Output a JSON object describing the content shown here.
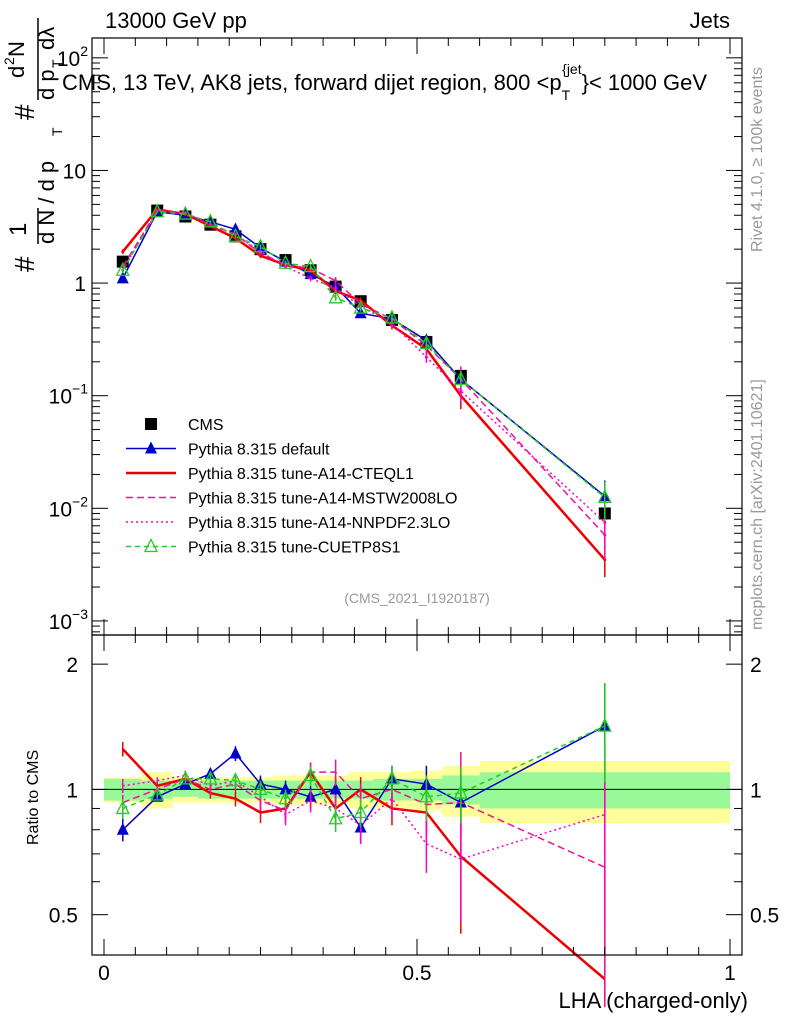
{
  "header": {
    "left": "13000 GeV pp",
    "right": "Jets"
  },
  "side": {
    "rivet": "Rivet 4.1.0, ≥ 100k events",
    "mcplots": "mcplots.cern.ch [arXiv:2401.10621]"
  },
  "ids": "(CMS_2021_I1920187)",
  "colors": {
    "cms": "#000000",
    "default": "#0000cc",
    "ctq": "#ee0000",
    "mstw": "#ee1199",
    "nnpdf": "#ff00cc",
    "cuetp": "#22cc22",
    "band_green": "#99f999",
    "band_yellow": "#ffff99"
  },
  "chart_data": {
    "type": "line",
    "title": "CMS, 13 TeV, AK8 jets, forward dijet region, 800 <p_T^{jet}< 1000 GeV",
    "title_parts": {
      "main": "CMS, 13 TeV, AK8 jets, forward dijet region, 800 <p",
      "sub": "T",
      "sup": "{jet",
      "end": "}< 1000 GeV"
    },
    "xlabel": "LHA (charged-only)",
    "ylabel": "1/dN/dpT · dN/dpT dλ",
    "ylabel_parts": {
      "one": "1",
      "dn": "d N / d p",
      "t": "T",
      "hash": "#",
      "d2n": "d",
      "two": "2",
      "n": "N",
      "dp": "d p",
      "dlam": "dλ"
    },
    "ratio_ylabel": "Ratio to CMS",
    "xlim": [
      0,
      1
    ],
    "ylim": [
      0.00075,
      150
    ],
    "ratio_ylim": [
      0.4,
      2.35
    ],
    "x_ticks": [
      "0",
      "0.5",
      "1"
    ],
    "y_ticks": [
      {
        "v": 100,
        "base": "10",
        "exp": "2"
      },
      {
        "v": 10,
        "base": "10",
        "exp": ""
      },
      {
        "v": 1,
        "base": "1",
        "exp": ""
      },
      {
        "v": 0.1,
        "base": "10",
        "exp": "−1"
      },
      {
        "v": 0.01,
        "base": "10",
        "exp": "−2"
      },
      {
        "v": 0.001,
        "base": "10",
        "exp": "−3"
      }
    ],
    "ratio_ticks": [
      "0.5",
      "1",
      "2"
    ],
    "bin_edges": [
      0.0,
      0.06,
      0.11,
      0.15,
      0.19,
      0.23,
      0.27,
      0.31,
      0.35,
      0.39,
      0.43,
      0.49,
      0.54,
      0.6,
      1.0
    ],
    "x": [
      0.03,
      0.085,
      0.13,
      0.17,
      0.21,
      0.25,
      0.29,
      0.33,
      0.37,
      0.41,
      0.46,
      0.515,
      0.57,
      0.8
    ],
    "band_green": [
      0.06,
      0.05,
      0.04,
      0.05,
      0.05,
      0.05,
      0.05,
      0.05,
      0.05,
      0.05,
      0.06,
      0.06,
      0.08,
      0.1
    ],
    "band_yellow": [
      0.07,
      0.1,
      0.07,
      0.07,
      0.07,
      0.07,
      0.08,
      0.08,
      0.08,
      0.1,
      0.1,
      0.11,
      0.14,
      0.17
    ],
    "series": [
      {
        "name": "CMS",
        "key": "cms",
        "marker": "square",
        "dash": "",
        "values": [
          1.55,
          4.4,
          3.9,
          3.3,
          2.6,
          2.0,
          1.6,
          1.3,
          0.93,
          0.69,
          0.47,
          0.3,
          0.15,
          0.009
        ],
        "ratio": [
          1,
          1,
          1,
          1,
          1,
          1,
          1,
          1,
          1,
          1,
          1,
          1,
          1,
          1
        ],
        "rerr": [
          0,
          0,
          0,
          0,
          0,
          0,
          0,
          0,
          0,
          0,
          0,
          0,
          0,
          0.1
        ]
      },
      {
        "name": "Pythia 8.315 default",
        "key": "default",
        "marker": "triangle",
        "dash": "",
        "values": [
          1.1,
          4.3,
          4.0,
          3.5,
          3.0,
          2.05,
          1.55,
          1.2,
          0.93,
          0.54,
          0.48,
          0.31,
          0.14,
          0.0128
        ],
        "ratio": [
          0.8,
          0.96,
          1.03,
          1.09,
          1.22,
          1.03,
          1.0,
          0.96,
          1.0,
          0.81,
          1.06,
          1.03,
          0.93,
          1.42
        ],
        "rerr": [
          0.05,
          0.02,
          0.03,
          0.03,
          0.05,
          0.05,
          0.05,
          0.06,
          0.07,
          0.07,
          0.08,
          0.11,
          0.15,
          0.38
        ]
      },
      {
        "name": "Pythia 8.315 tune-A14-CTEQL1",
        "key": "ctq",
        "marker": "none",
        "dash": "",
        "values": [
          1.9,
          4.5,
          4.1,
          3.2,
          2.5,
          1.75,
          1.45,
          1.3,
          0.85,
          0.7,
          0.42,
          0.26,
          0.1,
          0.0035
        ],
        "ratio": [
          1.25,
          1.02,
          1.06,
          0.98,
          0.95,
          0.88,
          0.9,
          1.1,
          0.9,
          1.0,
          0.9,
          0.88,
          0.69,
          0.35
        ],
        "rerr": [
          0.05,
          0.02,
          0.03,
          0.03,
          0.04,
          0.05,
          0.05,
          0.06,
          0.07,
          0.07,
          0.08,
          0.12,
          0.24,
          0.3
        ]
      },
      {
        "name": "Pythia 8.315 tune-A14-MSTW2008LO",
        "key": "mstw",
        "marker": "none",
        "dash": "7,4",
        "values": [
          1.4,
          4.4,
          4.2,
          3.3,
          2.7,
          1.85,
          1.45,
          1.35,
          1.05,
          0.65,
          0.48,
          0.28,
          0.14,
          0.0058
        ],
        "ratio": [
          0.93,
          1.0,
          1.06,
          1.0,
          1.03,
          0.94,
          0.89,
          1.1,
          1.1,
          0.95,
          1.0,
          0.92,
          0.93,
          0.65
        ],
        "rerr": [
          0.04,
          0.02,
          0.03,
          0.03,
          0.04,
          0.05,
          0.05,
          0.06,
          0.08,
          0.08,
          0.09,
          0.13,
          0.3,
          0.4
        ]
      },
      {
        "name": "Pythia 8.315 tune-A14-NNPDF2.3LO",
        "key": "nnpdf",
        "marker": "none",
        "dash": "2,3",
        "values": [
          1.3,
          4.4,
          4.2,
          3.3,
          2.7,
          1.9,
          1.4,
          1.1,
          0.9,
          0.62,
          0.44,
          0.22,
          0.11,
          0.0075
        ],
        "ratio": [
          1.02,
          1.05,
          1.08,
          1.02,
          1.05,
          0.96,
          0.87,
          0.94,
          0.9,
          0.82,
          0.95,
          0.74,
          0.68,
          0.87
        ],
        "rerr": [
          0.04,
          0.02,
          0.03,
          0.03,
          0.04,
          0.05,
          0.05,
          0.06,
          0.07,
          0.08,
          0.09,
          0.11,
          0.2,
          0.4
        ]
      },
      {
        "name": "Pythia 8.315 tune-CUETP8S1",
        "key": "cuetp",
        "marker": "open-triangle",
        "dash": "5,4",
        "values": [
          1.3,
          4.3,
          4.1,
          3.5,
          2.6,
          2.1,
          1.5,
          1.4,
          0.74,
          0.6,
          0.49,
          0.29,
          0.14,
          0.0125
        ],
        "ratio": [
          0.9,
          0.97,
          1.06,
          1.06,
          1.05,
          1.0,
          0.95,
          1.08,
          0.85,
          0.88,
          1.06,
          0.96,
          0.98,
          1.42
        ],
        "rerr": [
          0.05,
          0.02,
          0.03,
          0.03,
          0.04,
          0.05,
          0.05,
          0.06,
          0.06,
          0.07,
          0.08,
          0.12,
          0.15,
          0.38
        ]
      }
    ]
  }
}
